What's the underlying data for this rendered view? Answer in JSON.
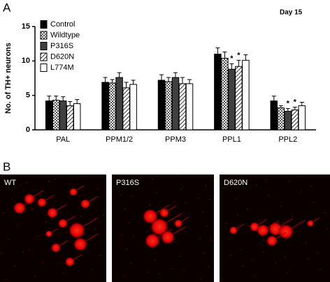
{
  "chart_data": {
    "type": "bar",
    "panel_label": "A",
    "subtitle": "Day 15",
    "y_label": "No. of TH+ neurons",
    "categories": [
      "PAL",
      "PPM1/2",
      "PPM3",
      "PPL1",
      "PPL2"
    ],
    "series": [
      {
        "name": "Control",
        "color": "#000000",
        "pattern": "solid",
        "values": [
          4.2,
          6.9,
          7.2,
          11.0,
          4.2
        ],
        "errors": [
          0.7,
          0.7,
          0.8,
          0.9,
          0.7
        ]
      },
      {
        "name": "Wildtype",
        "color": "#b0b0b0",
        "pattern": "checker",
        "values": [
          4.3,
          6.8,
          7.0,
          10.4,
          3.2
        ],
        "errors": [
          0.6,
          0.5,
          0.6,
          0.9,
          0.3
        ]
      },
      {
        "name": "P316S",
        "color": "#404040",
        "pattern": "solid",
        "values": [
          4.2,
          7.6,
          7.6,
          8.8,
          2.7
        ],
        "errors": [
          0.6,
          0.7,
          0.7,
          0.8,
          0.4
        ]
      },
      {
        "name": "D620N",
        "color": "#ffffff",
        "pattern": "hatch",
        "values": [
          3.5,
          6.1,
          6.7,
          9.2,
          2.9
        ],
        "errors": [
          0.6,
          0.8,
          0.9,
          0.9,
          0.4
        ]
      },
      {
        "name": "L774M",
        "color": "#ffffff",
        "pattern": "solid",
        "values": [
          3.8,
          6.6,
          6.7,
          10.1,
          3.5
        ],
        "errors": [
          0.6,
          0.6,
          0.6,
          0.8,
          0.5
        ]
      }
    ],
    "annotations": [
      {
        "text": "*",
        "category": "PPL1",
        "series": "P316S"
      },
      {
        "text": "*",
        "category": "PPL1",
        "series": "D620N"
      },
      {
        "text": "*",
        "category": "PPL2",
        "series": "P316S"
      },
      {
        "text": "*",
        "category": "PPL2",
        "series": "D620N"
      }
    ],
    "ylim": [
      0,
      15
    ],
    "yticks": [
      0,
      5,
      10,
      15
    ],
    "grid": false,
    "legend": "upper-left"
  },
  "panel_b": {
    "panel_label": "B",
    "images": [
      {
        "label": "WT"
      },
      {
        "label": "P316S"
      },
      {
        "label": "D620N"
      }
    ]
  }
}
